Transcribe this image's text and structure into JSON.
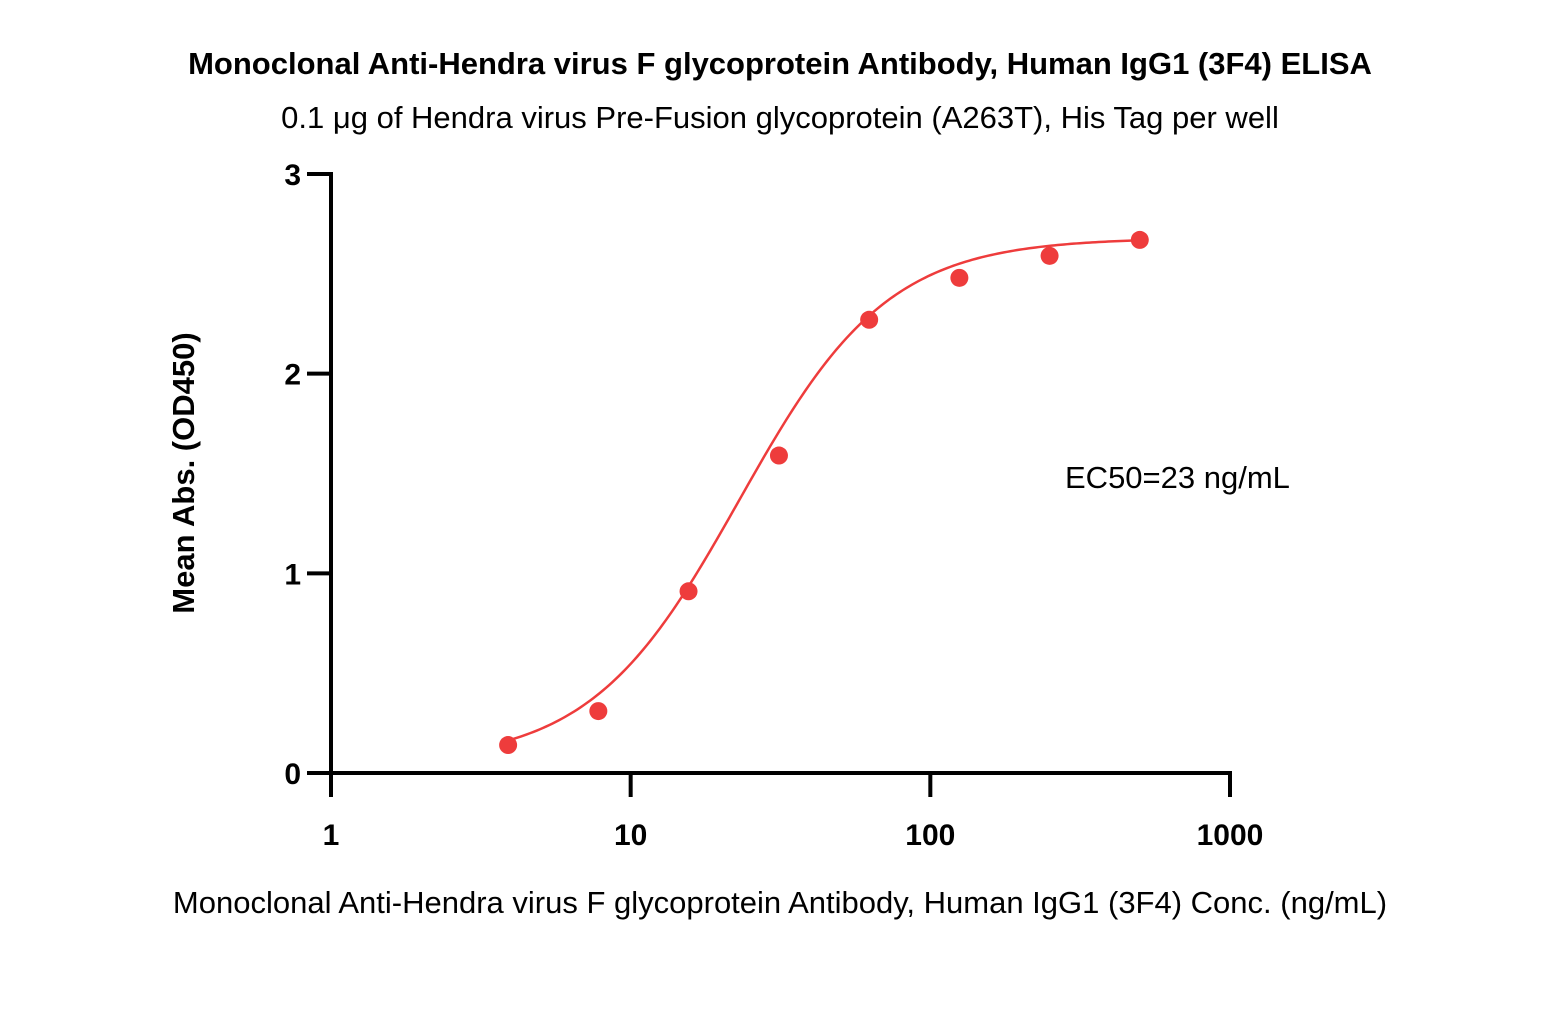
{
  "chart_data": {
    "type": "scatter",
    "title": "Monoclonal Anti-Hendra virus F glycoprotein Antibody, Human IgG1 (3F4) ELISA",
    "subtitle": "0.1 μg of Hendra virus Pre-Fusion glycoprotein (A263T), His Tag per well",
    "xlabel": "Monoclonal Anti-Hendra virus F glycoprotein Antibody, Human IgG1 (3F4) Conc. (ng/mL)",
    "ylabel": "Mean Abs. (OD450)",
    "x_scale": "log",
    "xlim": [
      1,
      1000
    ],
    "ylim": [
      0,
      3
    ],
    "x_ticks": [
      "1",
      "10",
      "100",
      "1000"
    ],
    "y_ticks": [
      "0",
      "1",
      "2",
      "3"
    ],
    "grid": false,
    "color": "#ee3c3c",
    "series": [
      {
        "x": [
          3.9,
          7.8,
          15.6,
          31.25,
          62.5,
          125,
          250,
          500
        ],
        "y": [
          0.14,
          0.31,
          0.91,
          1.59,
          2.27,
          2.48,
          2.59,
          2.67
        ]
      }
    ],
    "fit": {
      "bottom": 0.05,
      "top": 2.68,
      "ec50": 23,
      "hill": 1.75
    },
    "annotation": "EC50=23 ng/mL"
  }
}
